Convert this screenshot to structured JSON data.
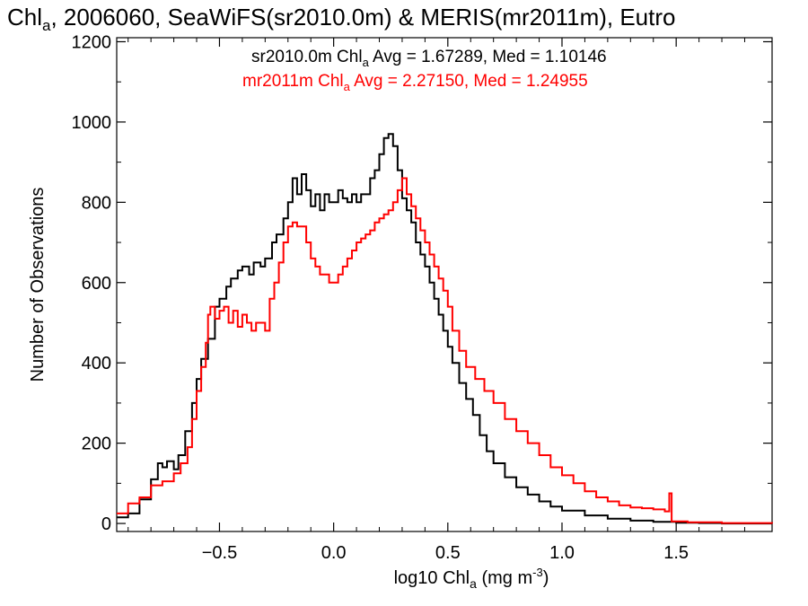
{
  "chart_data": {
    "type": "line",
    "title": "Chl_a, 2006060, SeaWiFS(sr2010.0m) & MERIS(mr2011m), Eutro",
    "title_parts": {
      "pre": "Chl",
      "sub": "a",
      "post": ", 2006060, SeaWiFS(sr2010.0m) & MERIS(mr2011m), Eutro"
    },
    "xlabel": "log10 Chl_a (mg m^-3)",
    "xlabel_parts": {
      "pre": "log10 Chl",
      "sub": "a",
      "mid": " (mg m",
      "sup": "-3",
      "post": ")"
    },
    "ylabel": "Number of Observations",
    "xlim": [
      -0.95,
      1.92
    ],
    "ylim": [
      -20,
      1210
    ],
    "xticks": [
      -0.5,
      0.0,
      0.5,
      1.0,
      1.5
    ],
    "xtick_labels": [
      "−0.5",
      "0.0",
      "0.5",
      "1.0",
      "1.5"
    ],
    "yticks": [
      0,
      200,
      400,
      600,
      800,
      1000,
      1200
    ],
    "ytick_labels": [
      "0",
      "200",
      "400",
      "600",
      "800",
      "1000",
      "1200"
    ],
    "grid": false,
    "legend": [
      {
        "pre": "sr2010.0m Chl",
        "sub": "a",
        "post": " Avg = 1.67289, Med = 1.10146",
        "color": "#000000"
      },
      {
        "pre": "mr2011m Chl",
        "sub": "a",
        "post": " Avg = 2.27150, Med = 1.24955",
        "color": "#ff0000"
      }
    ],
    "series": [
      {
        "color": "#000000",
        "points": [
          [
            -0.95,
            15
          ],
          [
            -0.9,
            25
          ],
          [
            -0.85,
            60
          ],
          [
            -0.8,
            110
          ],
          [
            -0.77,
            150
          ],
          [
            -0.75,
            140
          ],
          [
            -0.73,
            155
          ],
          [
            -0.7,
            135
          ],
          [
            -0.68,
            170
          ],
          [
            -0.65,
            230
          ],
          [
            -0.62,
            300
          ],
          [
            -0.6,
            360
          ],
          [
            -0.58,
            410
          ],
          [
            -0.55,
            460
          ],
          [
            -0.52,
            540
          ],
          [
            -0.5,
            560
          ],
          [
            -0.47,
            590
          ],
          [
            -0.45,
            610
          ],
          [
            -0.42,
            630
          ],
          [
            -0.4,
            640
          ],
          [
            -0.37,
            620
          ],
          [
            -0.35,
            650
          ],
          [
            -0.32,
            640
          ],
          [
            -0.3,
            660
          ],
          [
            -0.27,
            700
          ],
          [
            -0.25,
            720
          ],
          [
            -0.22,
            760
          ],
          [
            -0.2,
            800
          ],
          [
            -0.18,
            860
          ],
          [
            -0.16,
            820
          ],
          [
            -0.14,
            870
          ],
          [
            -0.12,
            830
          ],
          [
            -0.1,
            790
          ],
          [
            -0.08,
            820
          ],
          [
            -0.06,
            780
          ],
          [
            -0.04,
            820
          ],
          [
            -0.02,
            800
          ],
          [
            0.0,
            800
          ],
          [
            0.02,
            830
          ],
          [
            0.04,
            810
          ],
          [
            0.06,
            800
          ],
          [
            0.08,
            820
          ],
          [
            0.1,
            800
          ],
          [
            0.12,
            820
          ],
          [
            0.14,
            820
          ],
          [
            0.16,
            860
          ],
          [
            0.18,
            880
          ],
          [
            0.2,
            920
          ],
          [
            0.22,
            960
          ],
          [
            0.24,
            970
          ],
          [
            0.26,
            940
          ],
          [
            0.28,
            880
          ],
          [
            0.3,
            810
          ],
          [
            0.32,
            780
          ],
          [
            0.34,
            750
          ],
          [
            0.36,
            700
          ],
          [
            0.38,
            670
          ],
          [
            0.4,
            640
          ],
          [
            0.42,
            600
          ],
          [
            0.44,
            560
          ],
          [
            0.46,
            520
          ],
          [
            0.48,
            480
          ],
          [
            0.5,
            440
          ],
          [
            0.52,
            400
          ],
          [
            0.55,
            350
          ],
          [
            0.58,
            310
          ],
          [
            0.61,
            270
          ],
          [
            0.64,
            220
          ],
          [
            0.67,
            180
          ],
          [
            0.7,
            150
          ],
          [
            0.75,
            115
          ],
          [
            0.8,
            90
          ],
          [
            0.85,
            72
          ],
          [
            0.9,
            55
          ],
          [
            0.95,
            42
          ],
          [
            1.0,
            32
          ],
          [
            1.1,
            20
          ],
          [
            1.2,
            12
          ],
          [
            1.3,
            7
          ],
          [
            1.4,
            4
          ],
          [
            1.5,
            2
          ],
          [
            1.6,
            1
          ],
          [
            1.7,
            0
          ],
          [
            1.92,
            0
          ]
        ]
      },
      {
        "color": "#ff0000",
        "points": [
          [
            -0.95,
            25
          ],
          [
            -0.9,
            50
          ],
          [
            -0.85,
            65
          ],
          [
            -0.8,
            95
          ],
          [
            -0.75,
            105
          ],
          [
            -0.7,
            125
          ],
          [
            -0.67,
            150
          ],
          [
            -0.64,
            190
          ],
          [
            -0.62,
            260
          ],
          [
            -0.6,
            330
          ],
          [
            -0.58,
            390
          ],
          [
            -0.56,
            450
          ],
          [
            -0.55,
            520
          ],
          [
            -0.54,
            540
          ],
          [
            -0.52,
            510
          ],
          [
            -0.5,
            530
          ],
          [
            -0.48,
            540
          ],
          [
            -0.46,
            500
          ],
          [
            -0.44,
            530
          ],
          [
            -0.42,
            490
          ],
          [
            -0.4,
            520
          ],
          [
            -0.38,
            500
          ],
          [
            -0.36,
            480
          ],
          [
            -0.34,
            500
          ],
          [
            -0.32,
            500
          ],
          [
            -0.3,
            480
          ],
          [
            -0.28,
            560
          ],
          [
            -0.26,
            600
          ],
          [
            -0.24,
            650
          ],
          [
            -0.22,
            700
          ],
          [
            -0.2,
            740
          ],
          [
            -0.18,
            750
          ],
          [
            -0.16,
            740
          ],
          [
            -0.14,
            740
          ],
          [
            -0.12,
            700
          ],
          [
            -0.1,
            660
          ],
          [
            -0.08,
            640
          ],
          [
            -0.06,
            620
          ],
          [
            -0.04,
            620
          ],
          [
            -0.02,
            600
          ],
          [
            0.0,
            600
          ],
          [
            0.02,
            620
          ],
          [
            0.04,
            640
          ],
          [
            0.06,
            660
          ],
          [
            0.08,
            680
          ],
          [
            0.1,
            700
          ],
          [
            0.12,
            710
          ],
          [
            0.14,
            720
          ],
          [
            0.16,
            730
          ],
          [
            0.18,
            750
          ],
          [
            0.2,
            760
          ],
          [
            0.22,
            770
          ],
          [
            0.24,
            780
          ],
          [
            0.26,
            800
          ],
          [
            0.28,
            830
          ],
          [
            0.3,
            860
          ],
          [
            0.32,
            820
          ],
          [
            0.34,
            790
          ],
          [
            0.36,
            760
          ],
          [
            0.38,
            730
          ],
          [
            0.4,
            700
          ],
          [
            0.42,
            670
          ],
          [
            0.44,
            640
          ],
          [
            0.46,
            610
          ],
          [
            0.48,
            580
          ],
          [
            0.5,
            540
          ],
          [
            0.52,
            480
          ],
          [
            0.55,
            430
          ],
          [
            0.58,
            390
          ],
          [
            0.62,
            360
          ],
          [
            0.66,
            330
          ],
          [
            0.7,
            300
          ],
          [
            0.75,
            260
          ],
          [
            0.8,
            230
          ],
          [
            0.85,
            200
          ],
          [
            0.9,
            170
          ],
          [
            0.95,
            140
          ],
          [
            1.0,
            120
          ],
          [
            1.05,
            100
          ],
          [
            1.1,
            80
          ],
          [
            1.15,
            65
          ],
          [
            1.2,
            55
          ],
          [
            1.25,
            45
          ],
          [
            1.3,
            40
          ],
          [
            1.35,
            38
          ],
          [
            1.4,
            35
          ],
          [
            1.45,
            30
          ],
          [
            1.47,
            75
          ],
          [
            1.48,
            5
          ],
          [
            1.55,
            3
          ],
          [
            1.7,
            1
          ],
          [
            1.92,
            0
          ]
        ]
      }
    ]
  }
}
